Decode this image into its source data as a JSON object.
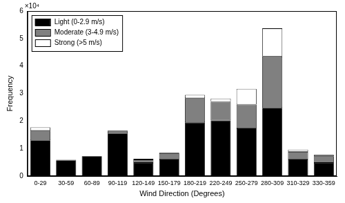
{
  "chart_data": {
    "type": "bar",
    "stacked": true,
    "x_label": "Wind Direction (Degrees)",
    "y_label": "Frequency",
    "annotations": [
      {
        "text": "×10⁴"
      }
    ],
    "categories": [
      "0-29",
      "30-59",
      "60-89",
      "90-119",
      "120-149",
      "150-179",
      "180-219",
      "220-249",
      "250-279",
      "280-309",
      "310-329",
      "330-359"
    ],
    "series": [
      {
        "name": "Light (0-2.9 m/s)",
        "color": "#000000",
        "values": [
          1.3,
          0.57,
          0.72,
          1.55,
          0.48,
          0.6,
          1.95,
          2.02,
          1.73,
          2.48,
          0.6,
          0.48
        ]
      },
      {
        "name": "Moderate (3-4.9 m/s)",
        "color": "#808080",
        "values": [
          0.35,
          0.02,
          0.01,
          0.1,
          0.12,
          0.23,
          0.88,
          0.68,
          0.87,
          1.87,
          0.28,
          0.24
        ]
      },
      {
        "name": "Strong (>5 m/s)",
        "color": "#ffffff",
        "values": [
          0.12,
          0,
          0,
          0.01,
          0.03,
          0.02,
          0.12,
          0.12,
          0.57,
          1.02,
          0.08,
          0.05
        ]
      }
    ],
    "ylim": [
      0,
      6
    ],
    "yticks": [
      0,
      1,
      2,
      3,
      4,
      5,
      6
    ],
    "grid": false,
    "legend": "upper left"
  }
}
